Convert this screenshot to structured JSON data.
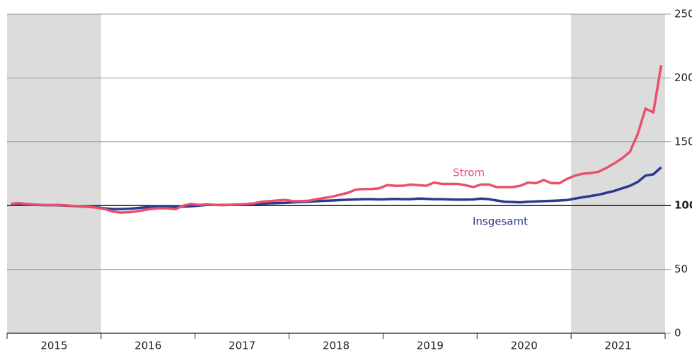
{
  "chart_data": {
    "type": "line",
    "categories": [
      null,
      null,
      null,
      null,
      null,
      "2015",
      null,
      null,
      null,
      null,
      null,
      null,
      null,
      null,
      null,
      null,
      null,
      "2016",
      null,
      null,
      null,
      null,
      null,
      null,
      null,
      null,
      null,
      null,
      null,
      "2017",
      null,
      null,
      null,
      null,
      null,
      null,
      null,
      null,
      null,
      null,
      null,
      "2018",
      null,
      null,
      null,
      null,
      null,
      null,
      null,
      null,
      null,
      null,
      null,
      "2019",
      null,
      null,
      null,
      null,
      null,
      null,
      null,
      null,
      null,
      null,
      null,
      "2020",
      null,
      null,
      null,
      null,
      null,
      null,
      null,
      null,
      null,
      null,
      null,
      "2021",
      null,
      null,
      null,
      null,
      null,
      null
    ],
    "series": [
      {
        "name": "Strom",
        "color": "#e8506e",
        "values": [
          101.5,
          102,
          101.3,
          100.8,
          100.5,
          100.3,
          100.5,
          100.2,
          99.6,
          99.3,
          99,
          98.3,
          97.2,
          95.3,
          94.5,
          94.8,
          95.5,
          96.5,
          97.5,
          98,
          97.8,
          97.2,
          100,
          101.3,
          100.5,
          101,
          100.5,
          100.3,
          100.5,
          100.8,
          101.2,
          101.8,
          103,
          103.5,
          104,
          104.5,
          103.5,
          103.5,
          103.8,
          105,
          106,
          107,
          108.5,
          110,
          112.5,
          113,
          113,
          113.5,
          116,
          115.5,
          115.5,
          116.5,
          116,
          115.5,
          118,
          117,
          117,
          117,
          116,
          114.5,
          116.5,
          116.5,
          114.5,
          114.5,
          114.5,
          115.5,
          118,
          117.5,
          120,
          117.5,
          117.5,
          121,
          123.5,
          125,
          125.5,
          126.5,
          129.5,
          133,
          137,
          142,
          156,
          176,
          173,
          210
        ]
      },
      {
        "name": "Insgesamt",
        "color": "#2b3990",
        "values": [
          100.5,
          100.6,
          100.5,
          100.5,
          100.4,
          100.3,
          100.3,
          100,
          99.6,
          99.3,
          99,
          98.7,
          97.8,
          97.3,
          97.3,
          97.5,
          98,
          98.5,
          98.8,
          99,
          99,
          99,
          99.2,
          99.5,
          100,
          100.5,
          100.5,
          100.5,
          100.6,
          100.8,
          101,
          101.2,
          101.5,
          101.8,
          102,
          102.2,
          102.5,
          102.8,
          103,
          103.4,
          103.8,
          104,
          104.3,
          104.6,
          104.8,
          105,
          105,
          104.8,
          105,
          105.2,
          105,
          105,
          105.5,
          105.3,
          105,
          105,
          104.8,
          104.7,
          104.7,
          104.8,
          105.5,
          105,
          104,
          103,
          102.8,
          102.5,
          103,
          103.2,
          103.5,
          103.7,
          104,
          104.3,
          105.5,
          106.5,
          107.5,
          108.5,
          110,
          111.5,
          113.5,
          115.5,
          118.5,
          123.5,
          124.5,
          130
        ]
      }
    ],
    "ylim": [
      0,
      250
    ],
    "yticks": [
      0,
      50,
      100,
      150,
      200,
      250
    ],
    "reference_line": 100,
    "shaded_years": [
      0,
      6
    ],
    "grid": true
  }
}
